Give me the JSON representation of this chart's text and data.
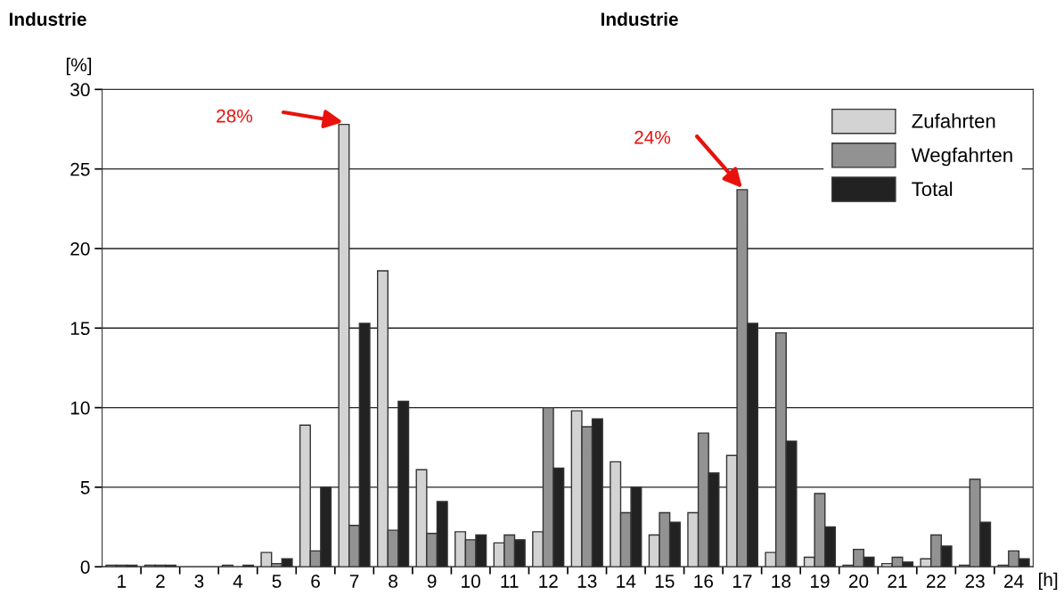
{
  "chart_data": {
    "type": "bar",
    "title": "Industrie",
    "ylabel": "[%]",
    "xlabel": "[h]",
    "annotations": [
      "Industrie",
      "28%",
      "24%"
    ],
    "categories": [
      "1",
      "2",
      "3",
      "4",
      "5",
      "6",
      "7",
      "8",
      "9",
      "10",
      "11",
      "12",
      "13",
      "14",
      "15",
      "16",
      "17",
      "18",
      "19",
      "20",
      "21",
      "22",
      "23",
      "24"
    ],
    "series": [
      {
        "name": "Zufahrten",
        "color": "#d3d3d3",
        "values": [
          0.1,
          0.1,
          0,
          0.1,
          0.9,
          8.9,
          27.8,
          18.6,
          6.1,
          2.2,
          1.5,
          2.2,
          9.8,
          6.6,
          2.0,
          3.4,
          7.0,
          0.9,
          0.6,
          0.1,
          0.2,
          0.5,
          0.1,
          0.1
        ]
      },
      {
        "name": "Wegfahrten",
        "color": "#929292",
        "values": [
          0.1,
          0.1,
          0,
          0,
          0.2,
          1.0,
          2.6,
          2.3,
          2.1,
          1.7,
          2.0,
          10.0,
          8.8,
          3.4,
          3.4,
          8.4,
          23.7,
          14.7,
          4.6,
          1.1,
          0.6,
          2.0,
          5.5,
          1.0
        ]
      },
      {
        "name": "Total",
        "color": "#222222",
        "values": [
          0.1,
          0.1,
          0,
          0.1,
          0.5,
          5.0,
          15.3,
          10.4,
          4.1,
          2.0,
          1.7,
          6.2,
          9.3,
          5.0,
          2.8,
          5.9,
          15.3,
          7.9,
          2.5,
          0.6,
          0.3,
          1.3,
          2.8,
          0.5
        ]
      }
    ],
    "ylim": [
      0,
      30
    ],
    "yticks": [
      0,
      5,
      10,
      15,
      20,
      25,
      30
    ],
    "grid": "y",
    "legend": "top right"
  }
}
